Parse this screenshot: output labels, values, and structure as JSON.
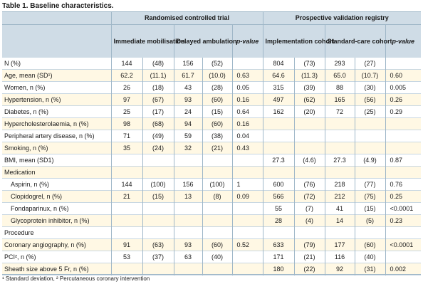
{
  "caption": "Table 1. Baseline characteristics.",
  "header": {
    "group1": "Randomised controlled trial",
    "group2": "Prospective validation registry",
    "col_immediate": "Immediate mobilisation",
    "col_delayed": "Delayed ambulation",
    "col_pvalue1": "p-value",
    "col_impl": "Implementation cohort",
    "col_std": "Standard-care cohort",
    "col_pvalue2": "p-value"
  },
  "rows": [
    {
      "label": "N (%)",
      "ind": false,
      "shade": false,
      "c": [
        "144",
        "(48)",
        "156",
        "(52)",
        "",
        "804",
        "(73)",
        "293",
        "(27)",
        ""
      ]
    },
    {
      "label": "Age, mean (SD¹)",
      "ind": false,
      "shade": true,
      "c": [
        "62.2",
        "(11.1)",
        "61.7",
        "(10.0)",
        "0.63",
        "64.6",
        "(11.3)",
        "65.0",
        "(10.7)",
        "0.60"
      ]
    },
    {
      "label": "Women, n (%)",
      "ind": false,
      "shade": false,
      "c": [
        "26",
        "(18)",
        "43",
        "(28)",
        "0.05",
        "315",
        "(39)",
        "88",
        "(30)",
        "0.005"
      ]
    },
    {
      "label": "Hypertension, n (%)",
      "ind": false,
      "shade": true,
      "c": [
        "97",
        "(67)",
        "93",
        "(60)",
        "0.16",
        "497",
        "(62)",
        "165",
        "(56)",
        "0.26"
      ]
    },
    {
      "label": "Diabetes, n (%)",
      "ind": false,
      "shade": false,
      "c": [
        "25",
        "(17)",
        "24",
        "(15)",
        "0.64",
        "162",
        "(20)",
        "72",
        "(25)",
        "0.29"
      ]
    },
    {
      "label": "Hypercholesterolaemia, n (%)",
      "ind": false,
      "shade": true,
      "c": [
        "98",
        "(68)",
        "94",
        "(60)",
        "0.16",
        "",
        "",
        "",
        "",
        ""
      ]
    },
    {
      "label": "Peripheral artery disease, n (%)",
      "ind": false,
      "shade": false,
      "c": [
        "71",
        "(49)",
        "59",
        "(38)",
        "0.04",
        "",
        "",
        "",
        "",
        ""
      ]
    },
    {
      "label": "Smoking, n (%)",
      "ind": false,
      "shade": true,
      "c": [
        "35",
        "(24)",
        "32",
        "(21)",
        "0.43",
        "",
        "",
        "",
        "",
        ""
      ]
    },
    {
      "label": "BMI, mean (SD1)",
      "ind": false,
      "shade": false,
      "c": [
        "",
        "",
        "",
        "",
        "",
        "27.3",
        "(4.6)",
        "27.3",
        "(4.9)",
        "0.87"
      ]
    },
    {
      "label": "Medication",
      "ind": false,
      "shade": true,
      "c": [
        "",
        "",
        "",
        "",
        "",
        "",
        "",
        "",
        "",
        ""
      ]
    },
    {
      "label": "Aspirin, n (%)",
      "ind": true,
      "shade": false,
      "c": [
        "144",
        "(100)",
        "156",
        "(100)",
        "1",
        "600",
        "(76)",
        "218",
        "(77)",
        "0.76"
      ]
    },
    {
      "label": "Clopidogrel, n (%)",
      "ind": true,
      "shade": true,
      "c": [
        "21",
        "(15)",
        "13",
        "(8)",
        "0.09",
        "566",
        "(72)",
        "212",
        "(75)",
        "0.25"
      ]
    },
    {
      "label": "Fondaparinux, n (%)",
      "ind": true,
      "shade": false,
      "c": [
        "",
        "",
        "",
        "",
        "",
        "55",
        "(7)",
        "41",
        "(15)",
        "<0.0001"
      ]
    },
    {
      "label": "Glycoprotein inhibitor, n (%)",
      "ind": true,
      "shade": true,
      "c": [
        "",
        "",
        "",
        "",
        "",
        "28",
        "(4)",
        "14",
        "(5)",
        "0.23"
      ]
    },
    {
      "label": "Procedure",
      "ind": false,
      "shade": false,
      "c": [
        "",
        "",
        "",
        "",
        "",
        "",
        "",
        "",
        "",
        ""
      ]
    },
    {
      "label": "Coronary angiography, n (%)",
      "ind": false,
      "shade": true,
      "c": [
        "91",
        "(63)",
        "93",
        "(60)",
        "0.52",
        "633",
        "(79)",
        "177",
        "(60)",
        "<0.0001"
      ]
    },
    {
      "label": "PCI², n (%)",
      "ind": false,
      "shade": false,
      "c": [
        "53",
        "(37)",
        "63",
        "(40)",
        "",
        "171",
        "(21)",
        "116",
        "(40)",
        ""
      ]
    },
    {
      "label": "Sheath size above 5 Fr, n (%)",
      "ind": false,
      "shade": true,
      "c": [
        "",
        "",
        "",
        "",
        "",
        "180",
        "(22)",
        "92",
        "(31)",
        "0.002"
      ]
    }
  ],
  "footnote": "¹ Standard deviation, ² Percutaneous coronary intervention"
}
